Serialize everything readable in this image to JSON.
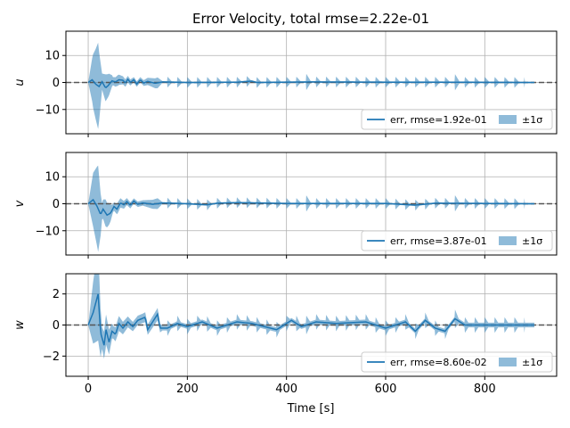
{
  "chart_data": {
    "type": "line",
    "title": "Error Velocity, total rmse=2.22e-01",
    "xlabel": "Time [s]",
    "xlim": [
      -45,
      945
    ],
    "xticks": [
      0,
      200,
      400,
      600,
      800
    ],
    "grid": true,
    "colors": {
      "line": "#1f77b4",
      "band": "#1f77b4",
      "zero_line": "#555555",
      "grid": "#b0b0b0"
    },
    "legend_placement": "lower right",
    "band_label": "±1σ",
    "panels": [
      {
        "ylabel": "u",
        "ylim": [
          -19,
          19
        ],
        "yticks": [
          -10,
          0,
          10
        ],
        "legend_label": "err, rmse=1.92e-01",
        "err": [
          [
            0,
            0
          ],
          [
            8,
            1.0
          ],
          [
            15,
            -0.6
          ],
          [
            22,
            -1.5
          ],
          [
            28,
            0.3
          ],
          [
            35,
            -2.0
          ],
          [
            40,
            -1.2
          ],
          [
            48,
            0.6
          ],
          [
            55,
            0.2
          ],
          [
            62,
            1.0
          ],
          [
            70,
            0.8
          ],
          [
            75,
            -0.2
          ],
          [
            80,
            1.2
          ],
          [
            85,
            0.0
          ],
          [
            92,
            1.0
          ],
          [
            98,
            -0.6
          ],
          [
            105,
            1.0
          ],
          [
            112,
            -0.2
          ],
          [
            120,
            0.4
          ],
          [
            135,
            -0.3
          ],
          [
            150,
            0.2
          ],
          [
            200,
            0.0
          ],
          [
            300,
            0.1
          ],
          [
            330,
            0.5
          ],
          [
            340,
            0.0
          ],
          [
            450,
            0.2
          ],
          [
            600,
            0.1
          ],
          [
            700,
            0.1
          ],
          [
            900,
            0.0
          ]
        ],
        "sigma": [
          [
            0,
            0
          ],
          [
            10,
            10
          ],
          [
            20,
            16
          ],
          [
            28,
            3
          ],
          [
            35,
            5
          ],
          [
            42,
            4
          ],
          [
            50,
            1.5
          ],
          [
            60,
            2.0
          ],
          [
            70,
            1.5
          ],
          [
            90,
            1.0
          ],
          [
            110,
            1.0
          ],
          [
            140,
            2.0
          ],
          [
            150,
            0.3
          ],
          [
            900,
            0.3
          ]
        ],
        "sigma_spikes": {
          "start": 160,
          "step": 20,
          "end": 880,
          "height": 2,
          "big": [
            [
              440,
              3
            ],
            [
              740,
              3
            ]
          ]
        }
      },
      {
        "ylabel": "v",
        "ylim": [
          -19,
          19
        ],
        "yticks": [
          -10,
          0,
          10
        ],
        "legend_label": "err, rmse=3.87e-01",
        "err": [
          [
            0,
            0
          ],
          [
            10,
            1.5
          ],
          [
            18,
            -1.0
          ],
          [
            25,
            -4.0
          ],
          [
            30,
            -2.0
          ],
          [
            38,
            -4.2
          ],
          [
            45,
            -3.5
          ],
          [
            52,
            -1.0
          ],
          [
            58,
            -2.0
          ],
          [
            65,
            0.3
          ],
          [
            72,
            -0.4
          ],
          [
            78,
            0.8
          ],
          [
            85,
            -0.6
          ],
          [
            92,
            1.0
          ],
          [
            100,
            -0.2
          ],
          [
            110,
            0.3
          ],
          [
            130,
            -0.2
          ],
          [
            150,
            0.3
          ],
          [
            200,
            0.0
          ],
          [
            240,
            -0.4
          ],
          [
            260,
            0.2
          ],
          [
            300,
            0.4
          ],
          [
            400,
            0.1
          ],
          [
            600,
            0.1
          ],
          [
            660,
            -0.5
          ],
          [
            700,
            0.2
          ],
          [
            900,
            0.0
          ]
        ],
        "sigma": [
          [
            0,
            0
          ],
          [
            10,
            10
          ],
          [
            20,
            16
          ],
          [
            28,
            3
          ],
          [
            35,
            5
          ],
          [
            42,
            4
          ],
          [
            50,
            1.5
          ],
          [
            60,
            2.0
          ],
          [
            70,
            1.5
          ],
          [
            90,
            1.0
          ],
          [
            110,
            1.0
          ],
          [
            140,
            2.0
          ],
          [
            150,
            0.3
          ],
          [
            900,
            0.3
          ]
        ],
        "sigma_spikes": {
          "start": 160,
          "step": 20,
          "end": 880,
          "height": 2,
          "big": [
            [
              440,
              3
            ],
            [
              740,
              3
            ]
          ]
        }
      },
      {
        "ylabel": "w",
        "ylim": [
          -3.3,
          3.3
        ],
        "yticks": [
          -2,
          0,
          2
        ],
        "legend_label": "err, rmse=8.60e-02",
        "err": [
          [
            0,
            0
          ],
          [
            10,
            0.8
          ],
          [
            20,
            2.0
          ],
          [
            25,
            -0.5
          ],
          [
            32,
            -1.3
          ],
          [
            36,
            -0.3
          ],
          [
            42,
            -1.1
          ],
          [
            48,
            -0.4
          ],
          [
            55,
            -0.6
          ],
          [
            62,
            0.1
          ],
          [
            70,
            -0.2
          ],
          [
            80,
            0.2
          ],
          [
            90,
            -0.1
          ],
          [
            100,
            0.3
          ],
          [
            115,
            0.5
          ],
          [
            120,
            -0.3
          ],
          [
            140,
            0.7
          ],
          [
            145,
            -0.2
          ],
          [
            160,
            -0.2
          ],
          [
            180,
            0.1
          ],
          [
            200,
            -0.1
          ],
          [
            230,
            0.2
          ],
          [
            260,
            -0.2
          ],
          [
            300,
            0.2
          ],
          [
            330,
            0.1
          ],
          [
            380,
            -0.3
          ],
          [
            410,
            0.3
          ],
          [
            430,
            -0.1
          ],
          [
            460,
            0.2
          ],
          [
            500,
            0.1
          ],
          [
            560,
            0.2
          ],
          [
            600,
            -0.2
          ],
          [
            640,
            0.2
          ],
          [
            660,
            -0.4
          ],
          [
            680,
            0.3
          ],
          [
            700,
            -0.2
          ],
          [
            720,
            -0.4
          ],
          [
            740,
            0.4
          ],
          [
            760,
            0.0
          ],
          [
            900,
            0.0
          ]
        ],
        "sigma": [
          [
            0,
            0
          ],
          [
            10,
            2.0
          ],
          [
            20,
            3.0
          ],
          [
            28,
            0.7
          ],
          [
            35,
            1.0
          ],
          [
            42,
            0.8
          ],
          [
            50,
            0.4
          ],
          [
            60,
            0.5
          ],
          [
            70,
            0.4
          ],
          [
            90,
            0.3
          ],
          [
            110,
            0.3
          ],
          [
            140,
            0.4
          ],
          [
            150,
            0.15
          ],
          [
            900,
            0.15
          ]
        ],
        "sigma_spikes": {
          "start": 160,
          "step": 20,
          "end": 880,
          "height": 0.5,
          "big": [
            [
              440,
              0.6
            ],
            [
              740,
              0.6
            ]
          ]
        }
      }
    ]
  }
}
